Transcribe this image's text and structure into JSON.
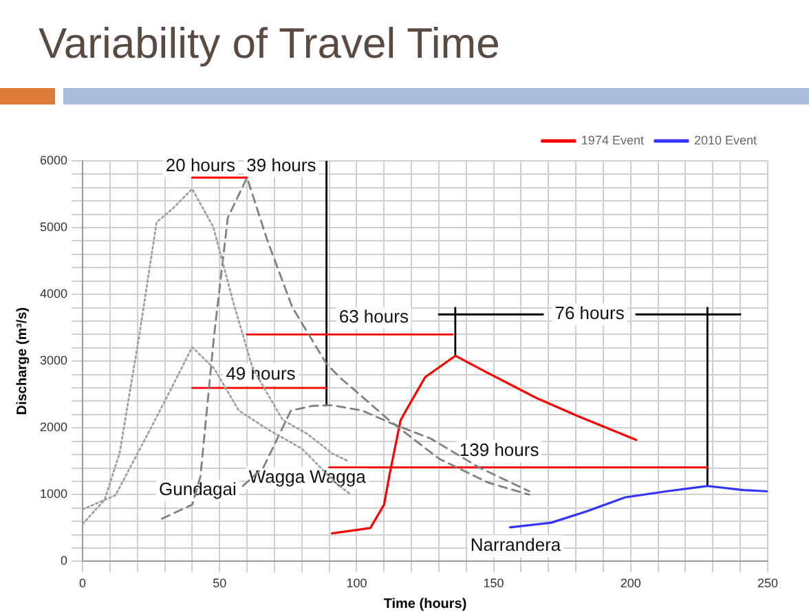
{
  "chart_data": {
    "type": "line",
    "title": "Variability of Travel Time",
    "xlabel": "Time (hours)",
    "ylabel": "Discharge (m³/s)",
    "xlim": [
      0,
      250
    ],
    "ylim": [
      0,
      6000
    ],
    "xticks": [
      0,
      {
        "value": 10,
        "label": null
      },
      {
        "value": 20,
        "label": null
      },
      {
        "value": 30,
        "label": null
      },
      {
        "value": 40,
        "label": null
      },
      50,
      {
        "value": 60,
        "label": null
      },
      {
        "value": 70,
        "label": null
      },
      {
        "value": 80,
        "label": null
      },
      {
        "value": 90,
        "label": null
      },
      100,
      {
        "value": 110,
        "label": null
      },
      {
        "value": 120,
        "label": null
      },
      {
        "value": 130,
        "label": null
      },
      {
        "value": 140,
        "label": null
      },
      150,
      {
        "value": 160,
        "label": null
      },
      {
        "value": 170,
        "label": null
      },
      {
        "value": 180,
        "label": null
      },
      {
        "value": 190,
        "label": null
      },
      200,
      {
        "value": 210,
        "label": null
      },
      {
        "value": 220,
        "label": null
      },
      {
        "value": 230,
        "label": null
      },
      {
        "value": 240,
        "label": null
      },
      250
    ],
    "yticks": [
      0,
      {
        "value": 200,
        "label": null
      },
      {
        "value": 400,
        "label": null
      },
      {
        "value": 600,
        "label": null
      },
      {
        "value": 800,
        "label": null
      },
      1000,
      {
        "value": 1200,
        "label": null
      },
      {
        "value": 1400,
        "label": null
      },
      {
        "value": 1600,
        "label": null
      },
      {
        "value": 1800,
        "label": null
      },
      2000,
      {
        "value": 2200,
        "label": null
      },
      {
        "value": 2400,
        "label": null
      },
      {
        "value": 2600,
        "label": null
      },
      {
        "value": 2800,
        "label": null
      },
      3000,
      {
        "value": 3200,
        "label": null
      },
      {
        "value": 3400,
        "label": null
      },
      {
        "value": 3600,
        "label": null
      },
      {
        "value": 3800,
        "label": null
      },
      4000,
      {
        "value": 4200,
        "label": null
      },
      {
        "value": 4400,
        "label": null
      },
      {
        "value": 4600,
        "label": null
      },
      {
        "value": 4800,
        "label": null
      },
      5000,
      {
        "value": 5200,
        "label": null
      },
      {
        "value": 5400,
        "label": null
      },
      {
        "value": 5600,
        "label": null
      },
      {
        "value": 5800,
        "label": null
      },
      6000
    ],
    "grid": true,
    "legend": "top right",
    "marker": "none",
    "series": [
      {
        "color": "#a0a0a0",
        "line_style": "dotted",
        "x": [
          0,
          8,
          13.5,
          20.7,
          27,
          33,
          40,
          47.7,
          55,
          62,
          73,
          82,
          91,
          97
        ],
        "values": [
          560,
          920,
          1620,
          3390,
          5080,
          5290,
          5580,
          5010,
          3880,
          2900,
          2120,
          1910,
          1620,
          1500
        ]
      },
      {
        "color": "#a0a0a0",
        "line_style": "dotted",
        "x": [
          0,
          12,
          21,
          30,
          40,
          48,
          57,
          67.5,
          80,
          93,
          98
        ],
        "values": [
          780,
          990,
          1690,
          2400,
          3210,
          2890,
          2260,
          1980,
          1690,
          1150,
          1000
        ]
      },
      {
        "color": "#808080",
        "line_style": "dashed",
        "x": [
          29,
          40,
          43,
          48,
          53,
          60,
          67.5,
          76.5,
          89,
          94,
          100,
          112,
          130,
          148,
          163
        ],
        "values": [
          640,
          850,
          1270,
          3390,
          5150,
          5750,
          4800,
          3810,
          2960,
          2750,
          2540,
          2110,
          1540,
          1180,
          1000
        ]
      },
      {
        "color": "#808080",
        "line_style": "dashed",
        "x": [
          58.5,
          66,
          76,
          84,
          91,
          102,
          112,
          127,
          145,
          163
        ],
        "values": [
          1130,
          1410,
          2260,
          2330,
          2340,
          2260,
          2080,
          1840,
          1400,
          1050
        ]
      },
      {
        "name": "1974 Event",
        "color": "#ff0000",
        "line_style": "solid",
        "x": [
          91,
          105,
          110,
          112,
          116,
          118,
          125,
          136,
          148,
          166,
          180.5,
          202
        ],
        "values": [
          420,
          500,
          850,
          1300,
          2110,
          2260,
          2760,
          3080,
          2820,
          2440,
          2180,
          1820
        ]
      },
      {
        "name": "2010 Event",
        "color": "#3333ff",
        "line_style": "solid",
        "x": [
          156,
          171,
          184,
          198,
          213,
          228,
          241,
          250
        ],
        "values": [
          510,
          580,
          750,
          960,
          1050,
          1130,
          1070,
          1050
        ]
      },
      {
        "color": "#ff0000",
        "line_style": "solid",
        "x": [
          40,
          60
        ],
        "values": [
          5750,
          5750
        ]
      },
      {
        "color": "#ff0000",
        "line_style": "solid",
        "x": [
          60,
          135
        ],
        "values": [
          3400,
          3400
        ]
      },
      {
        "color": "#ff0000",
        "line_style": "solid",
        "x": [
          40,
          89
        ],
        "values": [
          2600,
          2600
        ]
      },
      {
        "color": "#ff0000",
        "line_style": "solid",
        "x": [
          90,
          228
        ],
        "values": [
          1410,
          1410
        ]
      },
      {
        "color": "#000000",
        "line_style": "solid",
        "x": [
          89,
          89
        ],
        "values": [
          6000,
          2340
        ]
      },
      {
        "color": "#000000",
        "line_style": "solid",
        "x": [
          136,
          136
        ],
        "values": [
          3800,
          3080
        ]
      },
      {
        "color": "#000000",
        "line_style": "solid",
        "x": [
          228,
          228
        ],
        "values": [
          3800,
          1130
        ]
      },
      {
        "color": "#000000",
        "line_style": "solid",
        "x": [
          130,
          168
        ],
        "values": [
          3700,
          3700
        ]
      },
      {
        "color": "#000000",
        "line_style": "solid",
        "x": [
          202,
          240
        ],
        "values": [
          3700,
          3700
        ]
      }
    ],
    "annotations": [
      "20 hours",
      "39 hours",
      "63 hours",
      "49 hours",
      "76 hours",
      "139 hours",
      "Gundagai",
      "Wagga Wagga",
      "Narrandera"
    ]
  }
}
